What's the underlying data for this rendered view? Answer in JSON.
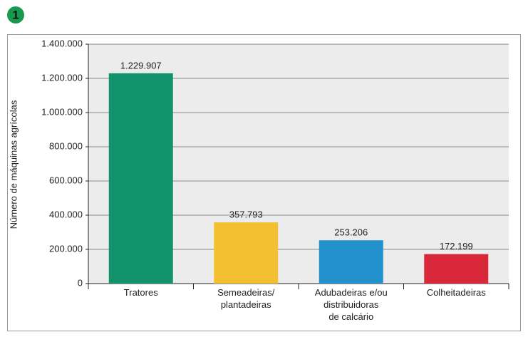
{
  "badge": "1",
  "chart_data": {
    "type": "bar",
    "y_label": "Número de máquinas agrícolas",
    "categories": [
      "Tratores",
      "Semeadeiras/ plantadeiras",
      "Adubadeiras e/ou distribuidoras de calcário",
      "Colheitadeiras"
    ],
    "values": [
      1229907,
      357793,
      253206,
      172199
    ],
    "value_labels": [
      "1.229.907",
      "357.793",
      "253.206",
      "172.199"
    ],
    "colors": [
      "#13936b",
      "#f2c030",
      "#2391cc",
      "#d8283a"
    ],
    "ylim": [
      0,
      1400000
    ],
    "yticks": [
      0,
      {
        "value": 200000,
        "label": "200.000"
      },
      {
        "value": 400000,
        "label": "400.000"
      },
      {
        "value": 600000,
        "label": "600.000"
      },
      {
        "value": 800000,
        "label": "800.000"
      },
      {
        "value": 1000000,
        "label": "1.000.000"
      },
      {
        "value": 1200000,
        "label": "1.200.000"
      },
      {
        "value": 1400000,
        "label": "1.400.000"
      }
    ],
    "grid": true
  }
}
